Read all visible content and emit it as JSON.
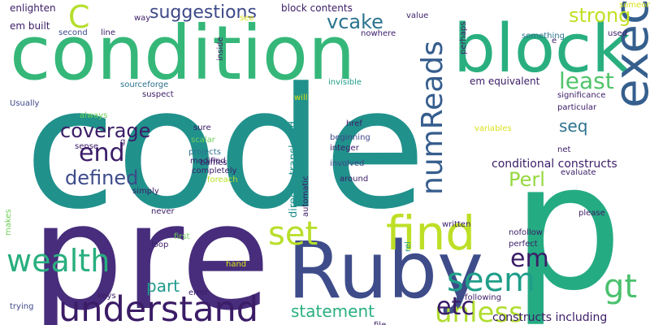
{
  "words": [
    {
      "text": "code",
      "color": "#21918c",
      "orientation": "horizontal"
    },
    {
      "text": "pre",
      "color": "#472d7b",
      "orientation": "horizontal"
    },
    {
      "text": "p",
      "color": "#25ab82",
      "orientation": "horizontal"
    },
    {
      "text": "condition",
      "color": "#35b779",
      "orientation": "horizontal"
    },
    {
      "text": "Ruby",
      "color": "#3e4c8a",
      "orientation": "horizontal"
    },
    {
      "text": "block",
      "color": "#29af7f",
      "orientation": "horizontal"
    },
    {
      "text": "find",
      "color": "#bddf26",
      "orientation": "horizontal"
    },
    {
      "text": "understand",
      "color": "#3b1c67",
      "orientation": "horizontal"
    },
    {
      "text": "numReads",
      "color": "#365d8d",
      "orientation": "vertical"
    },
    {
      "text": "wealth",
      "color": "#29af7f",
      "orientation": "horizontal"
    },
    {
      "text": "executed",
      "color": "#355f8d",
      "orientation": "vertical"
    },
    {
      "text": "C",
      "color": "#b5de2b",
      "orientation": "horizontal"
    },
    {
      "text": "set",
      "color": "#b8de29",
      "orientation": "horizontal"
    },
    {
      "text": "least",
      "color": "#50c46a",
      "orientation": "horizontal"
    },
    {
      "text": "seem",
      "color": "#1f9e89",
      "orientation": "horizontal"
    },
    {
      "text": "unless",
      "color": "#b0dd2f",
      "orientation": "horizontal"
    },
    {
      "text": "end",
      "color": "#3b1c67",
      "orientation": "horizontal"
    },
    {
      "text": "etc",
      "color": "#3b1c67",
      "orientation": "horizontal"
    },
    {
      "text": "em",
      "color": "#3b1c67",
      "orientation": "horizontal"
    },
    {
      "text": "gt",
      "color": "#4ac16d",
      "orientation": "horizontal"
    },
    {
      "text": "defined",
      "color": "#3e4c8a",
      "orientation": "horizontal"
    },
    {
      "text": "suggestions",
      "color": "#3e4989",
      "orientation": "horizontal"
    },
    {
      "text": "strong",
      "color": "#c2df23",
      "orientation": "horizontal"
    },
    {
      "text": "coverage",
      "color": "#3b1c67",
      "orientation": "horizontal"
    },
    {
      "text": "vcake",
      "color": "#2b748e",
      "orientation": "horizontal"
    },
    {
      "text": "statement",
      "color": "#2ab07f",
      "orientation": "horizontal"
    },
    {
      "text": "Perl",
      "color": "#95d840",
      "orientation": "horizontal"
    },
    {
      "text": "part",
      "color": "#1f998a",
      "orientation": "horizontal"
    },
    {
      "text": "seq",
      "color": "#2c728e",
      "orientation": "horizontal"
    },
    {
      "text": "conditional constructs",
      "color": "#3b1c67",
      "orientation": "horizontal"
    },
    {
      "text": "constructs including",
      "color": "#3b1c67",
      "orientation": "horizontal"
    },
    {
      "text": "directly translated",
      "color": "#21918c",
      "orientation": "vertical"
    },
    {
      "text": "em equivalent",
      "color": "#3b1c67",
      "orientation": "horizontal"
    },
    {
      "text": "em built",
      "color": "#3b1c67",
      "orientation": "horizontal"
    },
    {
      "text": "block contents",
      "color": "#3b1c67",
      "orientation": "horizontal"
    },
    {
      "text": "enlighten",
      "color": "#3b1c67",
      "orientation": "horizontal"
    },
    {
      "text": "sourceforge",
      "color": "#2c728e",
      "orientation": "horizontal"
    },
    {
      "text": "suspect",
      "color": "#3b1c67",
      "orientation": "horizontal"
    },
    {
      "text": "Usually",
      "color": "#3e4989",
      "orientation": "horizontal"
    },
    {
      "text": "significance",
      "color": "#3b1c67",
      "orientation": "horizontal"
    },
    {
      "text": "particular",
      "color": "#3b1c67",
      "orientation": "horizontal"
    },
    {
      "text": "invisible",
      "color": "#1f9e89",
      "orientation": "horizontal"
    },
    {
      "text": "beginning",
      "color": "#3e4989",
      "orientation": "horizontal"
    },
    {
      "text": "integer",
      "color": "#3b1c67",
      "orientation": "horizontal"
    },
    {
      "text": "involved",
      "color": "#3e4989",
      "orientation": "horizontal"
    },
    {
      "text": "around",
      "color": "#3b1c67",
      "orientation": "horizontal"
    },
    {
      "text": "href",
      "color": "#3b1c67",
      "orientation": "horizontal"
    },
    {
      "text": "variables",
      "color": "#d8e219",
      "orientation": "horizontal"
    },
    {
      "text": "evaluate",
      "color": "#3b1c67",
      "orientation": "horizontal"
    },
    {
      "text": "net",
      "color": "#3b1c67",
      "orientation": "horizontal"
    },
    {
      "text": "please",
      "color": "#3b1c67",
      "orientation": "horizontal"
    },
    {
      "text": "nofollow",
      "color": "#3b1c67",
      "orientation": "horizontal"
    },
    {
      "text": "perfect",
      "color": "#3b1c67",
      "orientation": "horizontal"
    },
    {
      "text": "written",
      "color": "#3b1c67",
      "orientation": "horizontal"
    },
    {
      "text": "following",
      "color": "#3b1c67",
      "orientation": "horizontal"
    },
    {
      "text": "file",
      "color": "#3b1c67",
      "orientation": "horizontal"
    },
    {
      "text": "rel",
      "color": "#1f9e89",
      "orientation": "vertical"
    },
    {
      "text": "automatic",
      "color": "#3b1c67",
      "orientation": "vertical"
    },
    {
      "text": "never",
      "color": "#3b1c67",
      "orientation": "horizontal"
    },
    {
      "text": "first",
      "color": "#6ece58",
      "orientation": "horizontal"
    },
    {
      "text": "loop",
      "color": "#3b1c67",
      "orientation": "horizontal"
    },
    {
      "text": "hand",
      "color": "#d8e219",
      "orientation": "horizontal"
    },
    {
      "text": "keys",
      "color": "#3b1c67",
      "orientation": "horizontal"
    },
    {
      "text": "error",
      "color": "#3b1c67",
      "orientation": "horizontal"
    },
    {
      "text": "trying",
      "color": "#3e4989",
      "orientation": "horizontal"
    },
    {
      "text": "makes",
      "color": "#6ece58",
      "orientation": "vertical"
    },
    {
      "text": "always",
      "color": "#6ece58",
      "orientation": "horizontal"
    },
    {
      "text": "sense",
      "color": "#3b1c67",
      "orientation": "horizontal"
    },
    {
      "text": "simply",
      "color": "#3b1c67",
      "orientation": "horizontal"
    },
    {
      "text": "sure",
      "color": "#3b1c67",
      "orientation": "horizontal"
    },
    {
      "text": "scalar",
      "color": "#6ece58",
      "orientation": "horizontal"
    },
    {
      "text": "projects",
      "color": "#2c728e",
      "orientation": "horizontal"
    },
    {
      "text": "baffles",
      "color": "#3b1c67",
      "orientation": "horizontal"
    },
    {
      "text": "modified",
      "color": "#3b1c67",
      "orientation": "horizontal"
    },
    {
      "text": "completely",
      "color": "#3b1c67",
      "orientation": "horizontal"
    },
    {
      "text": "foreach",
      "color": "#b8de29",
      "orientation": "horizontal"
    },
    {
      "text": "g",
      "color": "#3b1c67",
      "orientation": "horizontal"
    },
    {
      "text": "will",
      "color": "#d8e219",
      "orientation": "horizontal"
    },
    {
      "text": "inside",
      "color": "#3b1c67",
      "orientation": "vertical"
    },
    {
      "text": "way",
      "color": "#3b1c67",
      "orientation": "horizontal"
    },
    {
      "text": "see",
      "color": "#d8e219",
      "orientation": "horizontal"
    },
    {
      "text": "line",
      "color": "#3b1c67",
      "orientation": "horizontal"
    },
    {
      "text": "second",
      "color": "#3e4989",
      "orientation": "horizontal"
    },
    {
      "text": "nowhere",
      "color": "#3b1c67",
      "orientation": "horizontal"
    },
    {
      "text": "value",
      "color": "#3b1c67",
      "orientation": "horizontal"
    },
    {
      "text": "perhaps",
      "color": "#3b1c67",
      "orientation": "vertical"
    },
    {
      "text": "e",
      "color": "#3b1c67",
      "orientation": "horizontal"
    },
    {
      "text": "something",
      "color": "#2c728e",
      "orientation": "horizontal"
    },
    {
      "text": "someone",
      "color": "#d8e219",
      "orientation": "horizontal"
    },
    {
      "text": "used",
      "color": "#3b1c67",
      "orientation": "horizontal"
    }
  ]
}
